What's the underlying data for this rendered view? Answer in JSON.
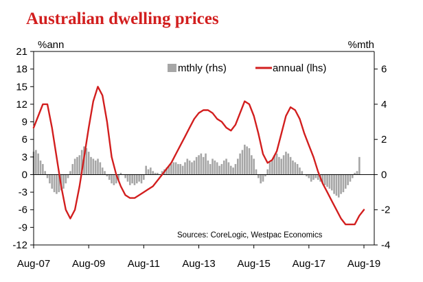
{
  "chart_data": {
    "type": "bar+line",
    "title": "Australian dwelling prices",
    "y_left": {
      "unit": "%ann",
      "lim": [
        -12,
        21
      ],
      "ticks": [
        21,
        18,
        15,
        12,
        9,
        6,
        3,
        0,
        -3,
        -6,
        -9,
        -12
      ]
    },
    "y_right": {
      "unit": "%mth",
      "lim": [
        -4,
        7
      ],
      "ticks": [
        6,
        4,
        2,
        0,
        -2,
        -4
      ]
    },
    "x_ticks": [
      "Aug-07",
      "Aug-09",
      "Aug-11",
      "Aug-13",
      "Aug-15",
      "Aug-17",
      "Aug-19"
    ],
    "x_range": [
      "Aug-07",
      "Aug-19"
    ],
    "legend": {
      "placement": "top-center",
      "entries": [
        "mthly (rhs)",
        "annual (lhs)"
      ]
    },
    "annotation": "Sources: CoreLogic, Westpac Economics",
    "colors": {
      "title": "#d21e1e",
      "annual_line": "#d21e1e",
      "monthly_bars": "#a6a6a6",
      "axis": "#000000"
    },
    "series": [
      {
        "name": "annual (lhs)",
        "type": "line",
        "axis": "left",
        "points": [
          [
            "Aug-07",
            8.0
          ],
          [
            "Oct-07",
            10.0
          ],
          [
            "Dec-07",
            12.0
          ],
          [
            "Feb-08",
            12.0
          ],
          [
            "Apr-08",
            8.0
          ],
          [
            "Jun-08",
            3.0
          ],
          [
            "Aug-08",
            -2.0
          ],
          [
            "Oct-08",
            -6.0
          ],
          [
            "Dec-08",
            -7.5
          ],
          [
            "Feb-09",
            -6.0
          ],
          [
            "Apr-09",
            -2.0
          ],
          [
            "Jun-09",
            3.0
          ],
          [
            "Aug-09",
            8.0
          ],
          [
            "Oct-09",
            12.5
          ],
          [
            "Dec-09",
            15.0
          ],
          [
            "Feb-10",
            13.5
          ],
          [
            "Apr-10",
            9.0
          ],
          [
            "Jun-10",
            3.0
          ],
          [
            "Aug-10",
            0.0
          ],
          [
            "Oct-10",
            -2.0
          ],
          [
            "Dec-10",
            -3.5
          ],
          [
            "Feb-11",
            -4.0
          ],
          [
            "Apr-11",
            -4.0
          ],
          [
            "Jun-11",
            -3.5
          ],
          [
            "Aug-11",
            -3.0
          ],
          [
            "Oct-11",
            -2.5
          ],
          [
            "Dec-11",
            -2.0
          ],
          [
            "Feb-12",
            -1.0
          ],
          [
            "Apr-12",
            0.0
          ],
          [
            "Jun-12",
            1.0
          ],
          [
            "Aug-12",
            2.0
          ],
          [
            "Oct-12",
            3.5
          ],
          [
            "Dec-12",
            5.0
          ],
          [
            "Feb-13",
            6.5
          ],
          [
            "Apr-13",
            8.0
          ],
          [
            "Jun-13",
            9.5
          ],
          [
            "Aug-13",
            10.5
          ],
          [
            "Oct-13",
            11.0
          ],
          [
            "Dec-13",
            11.0
          ],
          [
            "Feb-14",
            10.5
          ],
          [
            "Apr-14",
            9.5
          ],
          [
            "Jun-14",
            9.0
          ],
          [
            "Aug-14",
            8.0
          ],
          [
            "Oct-14",
            7.5
          ],
          [
            "Dec-14",
            8.5
          ],
          [
            "Feb-15",
            10.5
          ],
          [
            "Apr-15",
            12.5
          ],
          [
            "Jun-15",
            12.0
          ],
          [
            "Aug-15",
            10.0
          ],
          [
            "Oct-15",
            7.0
          ],
          [
            "Dec-15",
            3.5
          ],
          [
            "Feb-16",
            2.0
          ],
          [
            "Apr-16",
            2.5
          ],
          [
            "Jun-16",
            4.0
          ],
          [
            "Aug-16",
            7.0
          ],
          [
            "Oct-16",
            10.0
          ],
          [
            "Dec-16",
            11.5
          ],
          [
            "Feb-17",
            11.0
          ],
          [
            "Apr-17",
            9.5
          ],
          [
            "Jun-17",
            7.0
          ],
          [
            "Aug-17",
            5.0
          ],
          [
            "Oct-17",
            3.0
          ],
          [
            "Dec-17",
            0.5
          ],
          [
            "Feb-18",
            -1.5
          ],
          [
            "Apr-18",
            -3.0
          ],
          [
            "Jun-18",
            -4.5
          ],
          [
            "Aug-18",
            -6.0
          ],
          [
            "Oct-18",
            -7.5
          ],
          [
            "Dec-18",
            -8.5
          ],
          [
            "Feb-19",
            -8.5
          ],
          [
            "Apr-19",
            -8.5
          ],
          [
            "Jun-19",
            -7.0
          ],
          [
            "Aug-19",
            -6.0
          ]
        ]
      },
      {
        "name": "mthly (rhs)",
        "type": "bar",
        "axis": "right",
        "points": [
          [
            "Aug-07",
            1.3
          ],
          [
            "Sep-07",
            1.4
          ],
          [
            "Oct-07",
            1.2
          ],
          [
            "Nov-07",
            0.8
          ],
          [
            "Dec-07",
            0.6
          ],
          [
            "Jan-08",
            0.2
          ],
          [
            "Feb-08",
            -0.2
          ],
          [
            "Mar-08",
            -0.5
          ],
          [
            "Apr-08",
            -0.8
          ],
          [
            "May-08",
            -1.0
          ],
          [
            "Jun-08",
            -1.1
          ],
          [
            "Jul-08",
            -1.0
          ],
          [
            "Aug-08",
            -0.9
          ],
          [
            "Sep-08",
            -0.8
          ],
          [
            "Oct-08",
            -0.5
          ],
          [
            "Nov-08",
            -0.2
          ],
          [
            "Dec-08",
            0.2
          ],
          [
            "Jan-09",
            0.6
          ],
          [
            "Feb-09",
            0.9
          ],
          [
            "Mar-09",
            1.0
          ],
          [
            "Apr-09",
            1.1
          ],
          [
            "May-09",
            1.4
          ],
          [
            "Jun-09",
            1.6
          ],
          [
            "Jul-09",
            1.5
          ],
          [
            "Aug-09",
            1.3
          ],
          [
            "Sep-09",
            1.0
          ],
          [
            "Oct-09",
            0.9
          ],
          [
            "Nov-09",
            0.8
          ],
          [
            "Dec-09",
            0.9
          ],
          [
            "Jan-10",
            0.7
          ],
          [
            "Feb-10",
            0.4
          ],
          [
            "Mar-10",
            0.2
          ],
          [
            "Apr-10",
            -0.1
          ],
          [
            "May-10",
            -0.3
          ],
          [
            "Jun-10",
            -0.5
          ],
          [
            "Jul-10",
            -0.6
          ],
          [
            "Aug-10",
            -0.5
          ],
          [
            "Sep-10",
            -0.3
          ],
          [
            "Oct-10",
            0.1
          ],
          [
            "Nov-10",
            0.0
          ],
          [
            "Dec-10",
            -0.2
          ],
          [
            "Jan-11",
            -0.4
          ],
          [
            "Feb-11",
            -0.6
          ],
          [
            "Mar-11",
            -0.5
          ],
          [
            "Apr-11",
            -0.6
          ],
          [
            "May-11",
            -0.5
          ],
          [
            "Jun-11",
            -0.4
          ],
          [
            "Jul-11",
            -0.5
          ],
          [
            "Aug-11",
            -0.3
          ],
          [
            "Sep-11",
            0.5
          ],
          [
            "Oct-11",
            0.3
          ],
          [
            "Nov-11",
            0.4
          ],
          [
            "Dec-11",
            0.2
          ],
          [
            "Jan-12",
            0.1
          ],
          [
            "Feb-12",
            0.1
          ],
          [
            "Mar-12",
            0.0
          ],
          [
            "Apr-12",
            0.2
          ],
          [
            "May-12",
            0.3
          ],
          [
            "Jun-12",
            0.4
          ],
          [
            "Jul-12",
            0.5
          ],
          [
            "Aug-12",
            0.6
          ],
          [
            "Sep-12",
            0.7
          ],
          [
            "Oct-12",
            0.7
          ],
          [
            "Nov-12",
            0.6
          ],
          [
            "Dec-12",
            0.6
          ],
          [
            "Jan-13",
            0.5
          ],
          [
            "Feb-13",
            0.7
          ],
          [
            "Mar-13",
            0.9
          ],
          [
            "Apr-13",
            0.8
          ],
          [
            "May-13",
            0.7
          ],
          [
            "Jun-13",
            0.8
          ],
          [
            "Jul-13",
            1.0
          ],
          [
            "Aug-13",
            1.1
          ],
          [
            "Sep-13",
            1.2
          ],
          [
            "Oct-13",
            1.0
          ],
          [
            "Nov-13",
            1.2
          ],
          [
            "Dec-13",
            0.8
          ],
          [
            "Jan-14",
            0.6
          ],
          [
            "Feb-14",
            0.9
          ],
          [
            "Mar-14",
            0.8
          ],
          [
            "Apr-14",
            0.7
          ],
          [
            "May-14",
            0.5
          ],
          [
            "Jun-14",
            0.6
          ],
          [
            "Jul-14",
            0.8
          ],
          [
            "Aug-14",
            0.9
          ],
          [
            "Sep-14",
            0.7
          ],
          [
            "Oct-14",
            0.5
          ],
          [
            "Nov-14",
            0.4
          ],
          [
            "Dec-14",
            0.6
          ],
          [
            "Jan-15",
            0.9
          ],
          [
            "Feb-15",
            1.2
          ],
          [
            "Mar-15",
            1.4
          ],
          [
            "Apr-15",
            1.7
          ],
          [
            "May-15",
            1.6
          ],
          [
            "Jun-15",
            1.5
          ],
          [
            "Jul-15",
            1.1
          ],
          [
            "Aug-15",
            0.9
          ],
          [
            "Sep-15",
            0.3
          ],
          [
            "Oct-15",
            -0.2
          ],
          [
            "Nov-15",
            -0.5
          ],
          [
            "Dec-15",
            -0.4
          ],
          [
            "Jan-16",
            -0.1
          ],
          [
            "Feb-16",
            0.3
          ],
          [
            "Mar-16",
            0.7
          ],
          [
            "Apr-16",
            0.8
          ],
          [
            "May-16",
            1.1
          ],
          [
            "Jun-16",
            1.2
          ],
          [
            "Jul-16",
            1.0
          ],
          [
            "Aug-16",
            0.9
          ],
          [
            "Sep-16",
            1.1
          ],
          [
            "Oct-16",
            1.3
          ],
          [
            "Nov-16",
            1.2
          ],
          [
            "Dec-16",
            1.0
          ],
          [
            "Jan-17",
            0.8
          ],
          [
            "Feb-17",
            0.7
          ],
          [
            "Mar-17",
            0.6
          ],
          [
            "Apr-17",
            0.4
          ],
          [
            "May-17",
            0.2
          ],
          [
            "Jun-17",
            0.0
          ],
          [
            "Jul-17",
            -0.1
          ],
          [
            "Aug-17",
            -0.2
          ],
          [
            "Sep-17",
            -0.4
          ],
          [
            "Oct-17",
            -0.3
          ],
          [
            "Nov-17",
            -0.2
          ],
          [
            "Dec-17",
            -0.3
          ],
          [
            "Jan-18",
            -0.4
          ],
          [
            "Feb-18",
            -0.5
          ],
          [
            "Mar-18",
            -0.6
          ],
          [
            "Apr-18",
            -0.7
          ],
          [
            "May-18",
            -0.8
          ],
          [
            "Jun-18",
            -0.9
          ],
          [
            "Jul-18",
            -1.1
          ],
          [
            "Aug-18",
            -1.2
          ],
          [
            "Sep-18",
            -1.3
          ],
          [
            "Oct-18",
            -1.1
          ],
          [
            "Nov-18",
            -1.0
          ],
          [
            "Dec-18",
            -0.8
          ],
          [
            "Jan-19",
            -0.6
          ],
          [
            "Feb-19",
            -0.4
          ],
          [
            "Mar-19",
            -0.2
          ],
          [
            "Apr-19",
            0.1
          ],
          [
            "May-19",
            0.2
          ],
          [
            "Jun-19",
            1.0
          ]
        ]
      }
    ]
  }
}
